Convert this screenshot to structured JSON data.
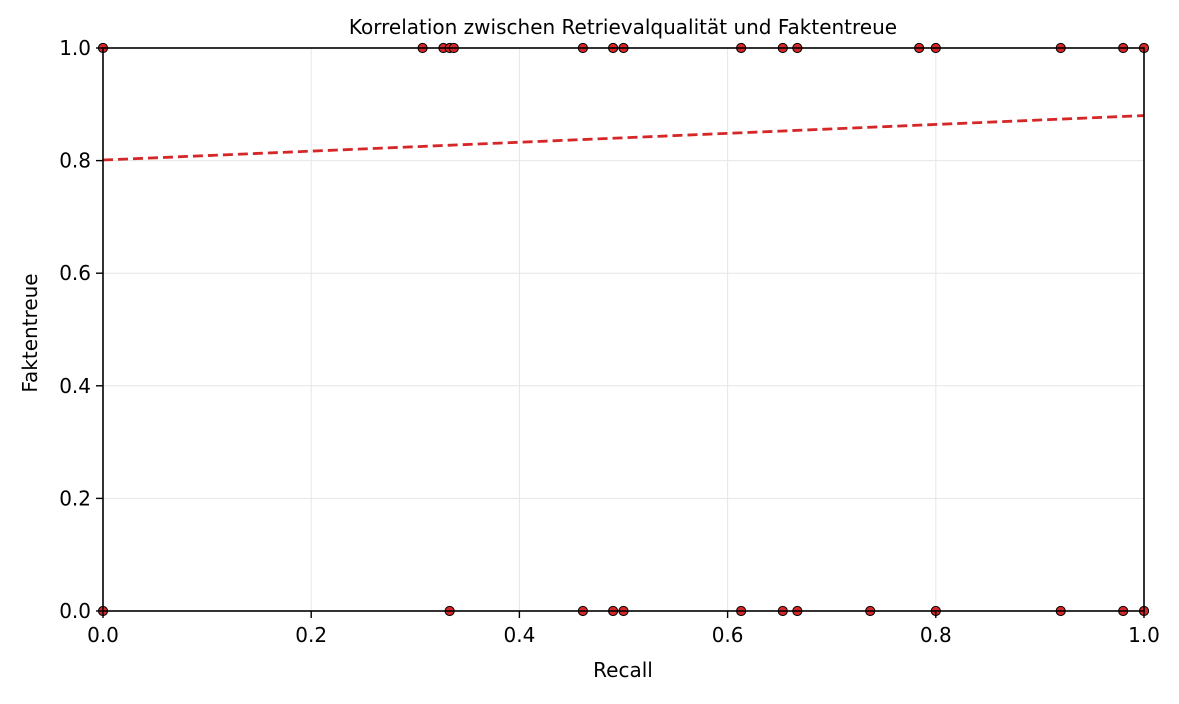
{
  "chart_data": {
    "type": "scatter",
    "title": "Korrelation zwischen Retrievalqualität und Faktentreue",
    "xlabel": "Recall",
    "ylabel": "Faktentreue",
    "xlim": [
      0,
      1
    ],
    "ylim": [
      0,
      1
    ],
    "xticks": [
      "0.0",
      "0.2",
      "0.4",
      "0.6",
      "0.8",
      "1.0"
    ],
    "yticks": [
      "0.0",
      "0.2",
      "0.4",
      "0.6",
      "0.8",
      "1.0"
    ],
    "grid": true,
    "colors": {
      "point_fill": "#d62728",
      "point_edge": "#000000",
      "trend": "#d62728",
      "grid": "#e6e6e6"
    },
    "series": [
      {
        "type": "scatter",
        "points": [
          {
            "x": 0.0,
            "y": 1
          },
          {
            "x": 0.307,
            "y": 1
          },
          {
            "x": 0.327,
            "y": 1
          },
          {
            "x": 0.333,
            "y": 1
          },
          {
            "x": 0.337,
            "y": 1
          },
          {
            "x": 0.461,
            "y": 1
          },
          {
            "x": 0.49,
            "y": 1
          },
          {
            "x": 0.5,
            "y": 1
          },
          {
            "x": 0.613,
            "y": 1
          },
          {
            "x": 0.653,
            "y": 1
          },
          {
            "x": 0.667,
            "y": 1
          },
          {
            "x": 0.784,
            "y": 1
          },
          {
            "x": 0.8,
            "y": 1
          },
          {
            "x": 0.92,
            "y": 1
          },
          {
            "x": 0.98,
            "y": 1
          },
          {
            "x": 1.0,
            "y": 1
          },
          {
            "x": 0.0,
            "y": 0
          },
          {
            "x": 0.333,
            "y": 0
          },
          {
            "x": 0.461,
            "y": 0
          },
          {
            "x": 0.49,
            "y": 0
          },
          {
            "x": 0.5,
            "y": 0
          },
          {
            "x": 0.613,
            "y": 0
          },
          {
            "x": 0.653,
            "y": 0
          },
          {
            "x": 0.667,
            "y": 0
          },
          {
            "x": 0.737,
            "y": 0
          },
          {
            "x": 0.8,
            "y": 0
          },
          {
            "x": 0.92,
            "y": 0
          },
          {
            "x": 0.98,
            "y": 0
          },
          {
            "x": 1.0,
            "y": 0
          }
        ]
      },
      {
        "type": "line",
        "style": "dashed",
        "points": [
          {
            "x": 0.0,
            "y": 0.801
          },
          {
            "x": 1.0,
            "y": 0.88
          }
        ]
      }
    ]
  }
}
